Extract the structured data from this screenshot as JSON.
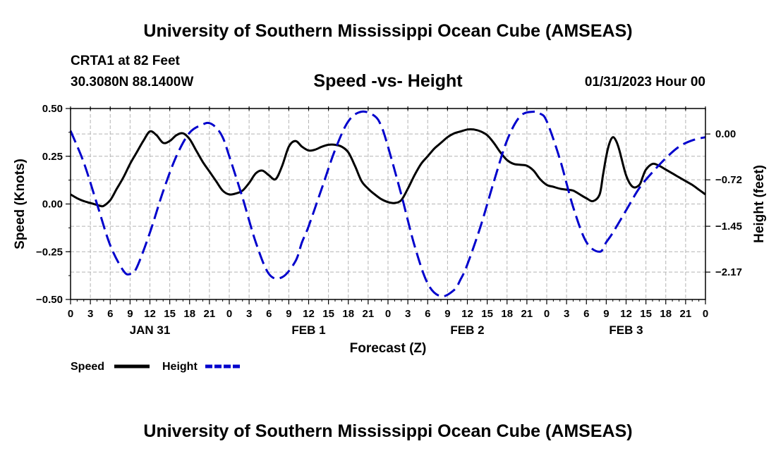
{
  "header": {
    "main_title": "University of Southern Mississippi Ocean Cube (AMSEAS)",
    "station": "CRTA1 at 82 Feet",
    "coords": "30.3080N  88.1400W",
    "subtitle": "Speed -vs- Height",
    "timestamp": "01/31/2023 Hour 00"
  },
  "footer": {
    "title": "University of Southern Mississippi Ocean Cube (AMSEAS)"
  },
  "chart_data": {
    "type": "line",
    "title": "Speed -vs- Height",
    "xlabel": "Forecast (Z)",
    "ylabel_left": "Speed (Knots)",
    "ylabel_right": "Height (feet)",
    "xlim": [
      0,
      96
    ],
    "ylim_left": [
      -0.5,
      0.5
    ],
    "ylim_right": [
      -2.6,
      0.4
    ],
    "yticks_left": [
      0.5,
      0.25,
      0.0,
      -0.25,
      -0.5
    ],
    "ytick_labels_left": [
      "0.50",
      "0.25",
      "0.00",
      "−0.25",
      "−0.50"
    ],
    "yticks_right": [
      0.0,
      -0.72,
      -1.45,
      -2.17
    ],
    "ytick_labels_right": [
      "0.00",
      "−0.72",
      "−1.45",
      "−2.17"
    ],
    "xtick_labels": [
      "0",
      "3",
      "6",
      "9",
      "12",
      "15",
      "18",
      "21",
      "0",
      "3",
      "6",
      "9",
      "12",
      "15",
      "18",
      "21",
      "0",
      "3",
      "6",
      "9",
      "12",
      "15",
      "18",
      "21",
      "0",
      "3",
      "6",
      "9",
      "12",
      "15",
      "18",
      "21",
      "0"
    ],
    "day_labels": [
      {
        "hour": 12,
        "label": "JAN 31"
      },
      {
        "hour": 36,
        "label": "FEB 1"
      },
      {
        "hour": 60,
        "label": "FEB 2"
      },
      {
        "hour": 84,
        "label": "FEB 3"
      }
    ],
    "grid": true,
    "series": [
      {
        "name": "Speed",
        "color": "#000000",
        "dash": "solid",
        "axis": "left",
        "x": [
          0,
          1,
          2,
          3,
          4,
          4.5,
          5,
          6,
          7,
          8,
          9,
          10,
          11,
          12,
          13,
          14,
          15,
          16,
          17,
          18,
          19,
          20,
          21,
          22,
          23,
          24,
          25,
          26,
          27,
          28,
          29,
          30,
          31,
          32,
          33,
          34,
          35,
          36,
          37,
          38,
          39,
          40,
          41,
          42,
          43,
          44,
          45,
          46,
          47,
          48,
          49,
          50,
          51,
          52,
          53,
          54,
          55,
          56,
          57,
          58,
          59,
          60,
          61,
          62,
          63,
          64,
          65,
          66,
          67,
          68,
          69,
          70,
          71,
          72,
          73,
          74,
          75,
          76,
          77,
          78,
          79,
          80,
          80.5,
          81,
          81.5,
          82,
          82.5,
          83,
          84,
          85,
          86,
          86.5,
          87,
          88,
          89,
          90,
          91,
          92,
          93,
          94,
          95,
          96
        ],
        "y": [
          0.05,
          0.03,
          0.015,
          0.005,
          -0.005,
          -0.01,
          -0.01,
          0.02,
          0.08,
          0.14,
          0.21,
          0.27,
          0.33,
          0.38,
          0.36,
          0.32,
          0.33,
          0.36,
          0.37,
          0.34,
          0.28,
          0.22,
          0.17,
          0.12,
          0.07,
          0.05,
          0.055,
          0.07,
          0.11,
          0.16,
          0.175,
          0.15,
          0.13,
          0.2,
          0.3,
          0.33,
          0.3,
          0.28,
          0.285,
          0.3,
          0.31,
          0.31,
          0.3,
          0.27,
          0.2,
          0.12,
          0.08,
          0.05,
          0.025,
          0.01,
          0.005,
          0.02,
          0.08,
          0.15,
          0.21,
          0.25,
          0.29,
          0.32,
          0.35,
          0.37,
          0.38,
          0.39,
          0.39,
          0.38,
          0.36,
          0.32,
          0.27,
          0.23,
          0.21,
          0.205,
          0.2,
          0.175,
          0.13,
          0.1,
          0.09,
          0.08,
          0.075,
          0.07,
          0.05,
          0.03,
          0.015,
          0.05,
          0.15,
          0.25,
          0.32,
          0.35,
          0.33,
          0.28,
          0.15,
          0.09,
          0.1,
          0.14,
          0.18,
          0.21,
          0.2,
          0.18,
          0.16,
          0.14,
          0.12,
          0.1,
          0.075,
          0.05
        ]
      },
      {
        "name": "Height",
        "color": "#0000cc",
        "dash": "dashed",
        "axis": "right",
        "x": [
          0,
          2,
          4,
          6,
          8,
          9,
          10,
          12,
          14,
          16,
          18,
          20,
          21,
          22,
          23,
          24,
          26,
          28,
          30,
          32,
          34,
          35,
          36,
          38,
          40,
          42,
          44,
          46,
          47,
          48,
          50,
          52,
          54,
          56,
          58,
          59,
          60,
          62,
          64,
          66,
          68,
          70,
          71,
          72,
          74,
          76,
          78,
          80,
          81,
          82,
          84,
          86,
          88,
          90,
          92,
          94,
          96
        ],
        "y": [
          0.05,
          -0.45,
          -1.1,
          -1.75,
          -2.15,
          -2.2,
          -2.1,
          -1.55,
          -0.9,
          -0.35,
          0.02,
          0.15,
          0.17,
          0.1,
          -0.05,
          -0.35,
          -1.0,
          -1.7,
          -2.2,
          -2.25,
          -2.0,
          -1.7,
          -1.45,
          -0.85,
          -0.25,
          0.2,
          0.35,
          0.28,
          0.12,
          -0.2,
          -0.95,
          -1.75,
          -2.35,
          -2.55,
          -2.45,
          -2.28,
          -2.05,
          -1.45,
          -0.75,
          -0.1,
          0.28,
          0.35,
          0.32,
          0.2,
          -0.4,
          -1.15,
          -1.7,
          -1.85,
          -1.7,
          -1.55,
          -1.2,
          -0.85,
          -0.6,
          -0.38,
          -0.2,
          -0.1,
          -0.05
        ]
      }
    ]
  },
  "legend": {
    "speed_label": "Speed",
    "height_label": "Height"
  }
}
